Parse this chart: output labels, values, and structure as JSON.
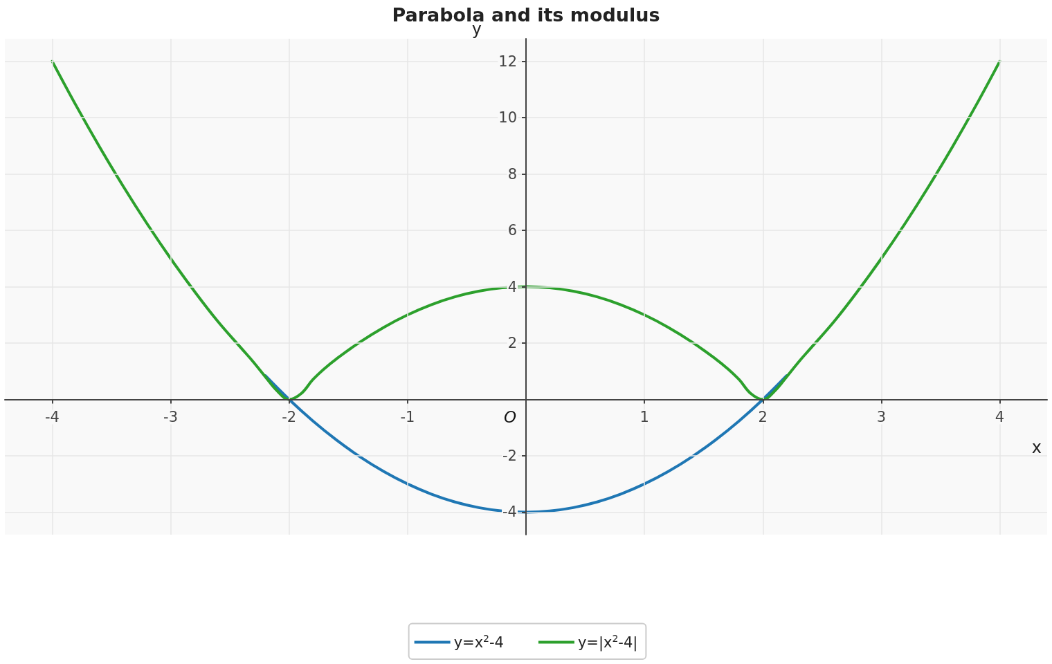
{
  "chart_data": {
    "type": "line",
    "title": "Parabola and its modulus",
    "xlabel": "x",
    "ylabel": "y",
    "x": [
      -2.2,
      -2,
      -1.8,
      -1.6,
      -1.4,
      -1.2,
      -1,
      -0.8,
      -0.6,
      -0.4,
      -0.2,
      0,
      0.2,
      0.4,
      0.6,
      0.8,
      1,
      1.2,
      1.4,
      1.6,
      1.8,
      2,
      2.2
    ],
    "series": [
      {
        "name": "y=x$^{2}$-4",
        "color": "#1f77b4",
        "values": [
          0.84,
          0,
          -0.76,
          -1.44,
          -2.04,
          -2.56,
          -3.0,
          -3.36,
          -3.64,
          -3.84,
          -3.96,
          -4.0,
          -3.96,
          -3.84,
          -3.64,
          -3.36,
          -3.0,
          -2.56,
          -2.04,
          -1.44,
          -0.76,
          0,
          0.84
        ]
      },
      {
        "name": "y=|x$^{2}$-4|",
        "color": "#2ca02c",
        "x": [
          -4,
          -3.8,
          -3.6,
          -3.4,
          -3.2,
          -3,
          -2.8,
          -2.6,
          -2.4,
          -2.3,
          -2.2,
          -2.1,
          -2,
          -1.9,
          -1.8,
          -1.7,
          -1.6,
          -1.4,
          -1.2,
          -1,
          -0.8,
          -0.6,
          -0.4,
          -0.2,
          0,
          0.2,
          0.4,
          0.6,
          0.8,
          1,
          1.2,
          1.4,
          1.6,
          1.7,
          1.8,
          1.9,
          2,
          2.1,
          2.2,
          2.3,
          2.4,
          2.6,
          2.8,
          3,
          3.2,
          3.4,
          3.6,
          3.8,
          4
        ],
        "values": [
          12,
          10.44,
          8.96,
          7.56,
          6.24,
          5.0,
          3.84,
          2.76,
          1.8,
          1.32,
          0.8,
          0.3,
          0,
          0.2,
          0.7,
          1.1,
          1.44,
          2.04,
          2.56,
          3.0,
          3.36,
          3.64,
          3.84,
          3.96,
          4.0,
          3.96,
          3.84,
          3.64,
          3.36,
          3.0,
          2.56,
          2.04,
          1.44,
          1.1,
          0.7,
          0.2,
          0,
          0.3,
          0.8,
          1.32,
          1.8,
          2.76,
          3.84,
          5.0,
          6.24,
          7.56,
          8.96,
          10.44,
          12
        ]
      }
    ],
    "xlim": [
      -4.4,
      4.4
    ],
    "ylim": [
      -4.8,
      12.8
    ],
    "xticks": [
      -4,
      -3,
      -2,
      -1,
      1,
      2,
      3,
      4
    ],
    "yticks": [
      -4,
      -2,
      2,
      4,
      6,
      8,
      10,
      12
    ],
    "grid": true,
    "legend": "bottom",
    "line_style": "solid",
    "annotations": [
      "O"
    ]
  }
}
